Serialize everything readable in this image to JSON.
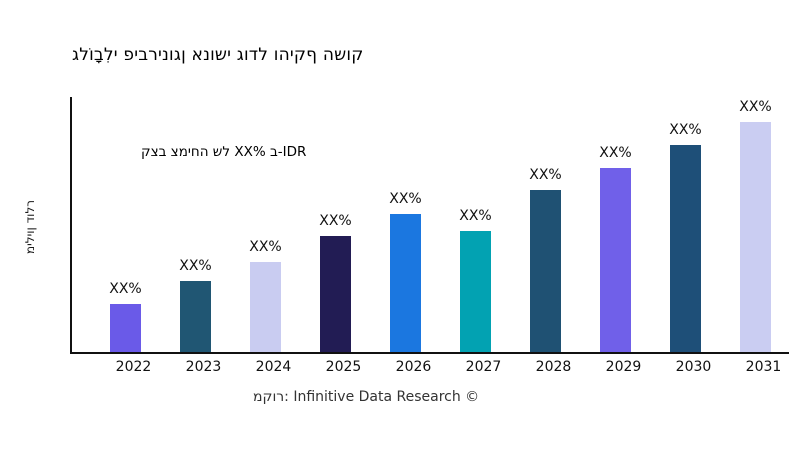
{
  "title": {
    "text": "גלוֹבָלִי פיברינוגן אנושי גודל והיקף השוק",
    "color": "#2A5784"
  },
  "annotation": {
    "text": "קצב צמיחה של XX% ב-IDR",
    "color": "#E41414"
  },
  "y_axis": {
    "label": "מיליון דולר"
  },
  "source": {
    "text": "מקור: Infinitive Data Research ©"
  },
  "chart_data": {
    "type": "bar",
    "title": "גלוֹבָלִי פיברינוגן אנושי גודל והיקף השוק",
    "ylabel": "מיליון דולר",
    "xlabel": "",
    "grid": false,
    "legend": "none",
    "categories": [
      "2022",
      "2023",
      "2024",
      "2025",
      "2026",
      "2027",
      "2028",
      "2029",
      "2030",
      "2031"
    ],
    "value_labels": [
      "XX%",
      "XX%",
      "XX%",
      "XX%",
      "XX%",
      "XX%",
      "XX%",
      "XX%",
      "XX%",
      "XX%"
    ],
    "values_relative": [
      48,
      71,
      90,
      116,
      138,
      121,
      162,
      184,
      207,
      230
    ],
    "values_unit": "relative bar height (no numeric y-axis ticks shown; all bars labeled XX%)",
    "bar_colors": [
      "#6A5AE8",
      "#205673",
      "#C9CCF1",
      "#221C54",
      "#1B77E0",
      "#02A2B2",
      "#1F5173",
      "#7060E9",
      "#1E4F78",
      "#CACDF2"
    ]
  }
}
